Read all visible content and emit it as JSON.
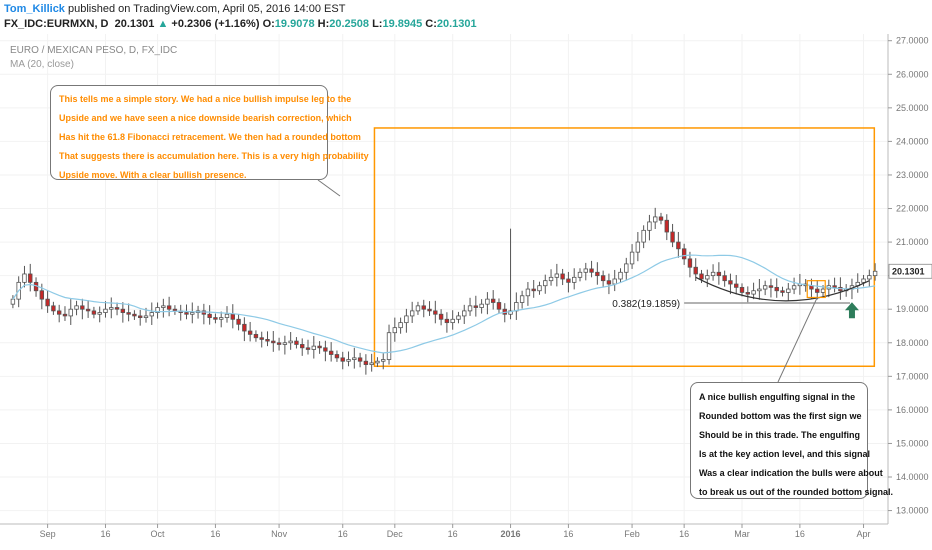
{
  "header": {
    "author": "Tom_Killick",
    "published": " published on TradingView.com, April 05, 2016 14:00 EST",
    "symbol": "FX_IDC:EURMXN, D",
    "last": "20.1301",
    "arrow": "▲",
    "change": "+0.2306 (+1.16%)",
    "o_label": "O:",
    "o_value": "19.9078",
    "h_label": "H:",
    "h_value": "20.2508",
    "l_label": "L:",
    "l_value": "19.8945",
    "c_label": "C:",
    "c_value": "20.1301"
  },
  "legend": {
    "title": "EURO / MEXICAN PESO, D, FX_IDC",
    "indicator": "MA (20, close)"
  },
  "annotations": {
    "note1": [
      "This tells me a simple story. We had a nice bullish impulse leg to the",
      "Upside and we have seen a nice downside bearish correction, which",
      "Has hit the 61.8 Fibonacci retracement. We then had a rounded bottom",
      "That suggests there is accumulation here. This is a very high probability",
      "Upside move. With a clear bullish presence."
    ],
    "note2": [
      "A nice bullish engulfing signal in the",
      "Rounded bottom was the first sign we",
      "Should be in this trade. The engulfing",
      "Is at the key action level, and this signal",
      "Was a clear indication the bulls were about",
      "to break us out of the rounded bottom signal."
    ],
    "fib_label": "0.382(19.1859)",
    "fib_level": 19.1859
  },
  "colors": {
    "bull": "#ffffff",
    "bear": "#c62828",
    "candle_outline": "#555555",
    "ma": "#8ecae6",
    "highlight_box": "#ff9800",
    "arrow": "#2e7d5b",
    "note1_text": "#ff8c00",
    "price_tag": "#222222"
  },
  "chart_data": {
    "type": "candlestick",
    "title": "EURO / MEXICAN PESO, D, FX_IDC",
    "ylim": [
      12.6,
      27.2
    ],
    "y_ticks": [
      "13.0000",
      "14.0000",
      "15.0000",
      "16.0000",
      "17.0000",
      "18.0000",
      "19.0000",
      "20.0000",
      "21.0000",
      "22.0000",
      "23.0000",
      "24.0000",
      "25.0000",
      "26.0000",
      "27.0000"
    ],
    "x_ticks": [
      {
        "label": "Sep",
        "i": 6
      },
      {
        "label": "16",
        "i": 16
      },
      {
        "label": "Oct",
        "i": 25
      },
      {
        "label": "16",
        "i": 35
      },
      {
        "label": "Nov",
        "i": 46
      },
      {
        "label": "16",
        "i": 57
      },
      {
        "label": "Dec",
        "i": 66
      },
      {
        "label": "16",
        "i": 76
      },
      {
        "label": "2016",
        "i": 86
      },
      {
        "label": "16",
        "i": 96
      },
      {
        "label": "Feb",
        "i": 107
      },
      {
        "label": "16",
        "i": 116
      },
      {
        "label": "Mar",
        "i": 126
      },
      {
        "label": "16",
        "i": 136
      },
      {
        "label": "Apr",
        "i": 147
      }
    ],
    "last_price": "20.1301",
    "last_value": 20.1301,
    "close": [
      19.3,
      19.8,
      20.05,
      19.8,
      19.55,
      19.3,
      19.1,
      18.95,
      18.85,
      18.8,
      19.0,
      19.1,
      19.0,
      18.95,
      18.85,
      18.9,
      19.0,
      19.05,
      19.0,
      18.9,
      18.85,
      18.8,
      18.75,
      18.8,
      18.9,
      19.05,
      19.1,
      19.0,
      18.95,
      18.9,
      18.85,
      18.9,
      18.95,
      18.85,
      18.75,
      18.7,
      18.75,
      18.85,
      18.7,
      18.55,
      18.35,
      18.25,
      18.15,
      18.1,
      18.05,
      18.0,
      17.95,
      18.0,
      18.05,
      17.95,
      17.85,
      17.8,
      17.9,
      17.85,
      17.75,
      17.65,
      17.55,
      17.45,
      17.5,
      17.55,
      17.45,
      17.35,
      17.4,
      17.45,
      17.5,
      18.3,
      18.45,
      18.6,
      18.8,
      18.95,
      19.1,
      19.0,
      18.95,
      18.85,
      18.7,
      18.6,
      18.7,
      18.8,
      18.95,
      19.1,
      19.05,
      19.15,
      19.3,
      19.2,
      19.0,
      18.85,
      18.95,
      19.2,
      19.4,
      19.6,
      19.55,
      19.7,
      19.85,
      19.95,
      20.05,
      19.9,
      19.8,
      19.95,
      20.1,
      20.2,
      20.1,
      20.0,
      19.85,
      19.75,
      19.9,
      20.1,
      20.35,
      20.7,
      21.0,
      21.35,
      21.6,
      21.75,
      21.65,
      21.3,
      21.0,
      20.8,
      20.5,
      20.25,
      20.05,
      19.9,
      20.0,
      20.1,
      20.0,
      19.85,
      19.75,
      19.65,
      19.5,
      19.45,
      19.55,
      19.6,
      19.7,
      19.65,
      19.55,
      19.5,
      19.6,
      19.7,
      19.75,
      19.7,
      19.6,
      19.5,
      19.6,
      19.7,
      19.65,
      19.55,
      19.6,
      19.7,
      19.8,
      19.9,
      20.0,
      20.13
    ],
    "ma_period": 20
  }
}
